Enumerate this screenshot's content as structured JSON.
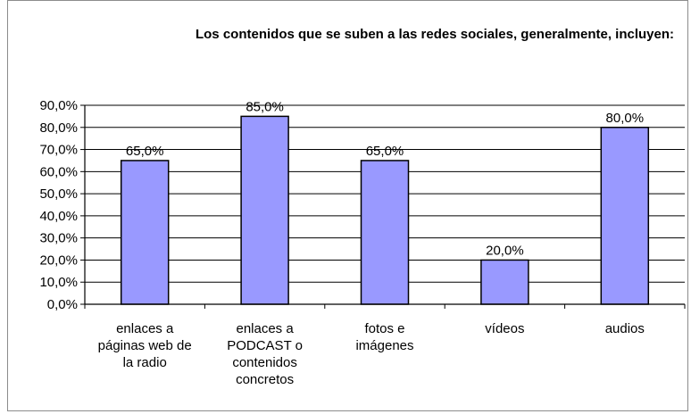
{
  "chart_data": {
    "type": "bar",
    "title": "Los contenidos que se suben a las redes sociales, generalmente, incluyen:",
    "categories": [
      [
        "enlaces a",
        "páginas web de",
        "la radio"
      ],
      [
        "enlaces a",
        "PODCAST o",
        "contenidos",
        "concretos"
      ],
      [
        "fotos e",
        "imágenes"
      ],
      [
        "vídeos"
      ],
      [
        "audios"
      ]
    ],
    "values": [
      65.0,
      85.0,
      65.0,
      20.0,
      80.0
    ],
    "value_labels": [
      "65,0%",
      "85,0%",
      "65,0%",
      "20,0%",
      "80,0%"
    ],
    "ylim": [
      0,
      90
    ],
    "yticks": [
      0,
      10,
      20,
      30,
      40,
      50,
      60,
      70,
      80,
      90
    ],
    "ytick_labels": [
      "0,0%",
      "10,0%",
      "20,0%",
      "30,0%",
      "40,0%",
      "50,0%",
      "60,0%",
      "70,0%",
      "80,0%",
      "90,0%"
    ],
    "grid": true,
    "bar_color": "#9999ff",
    "bar_edge_color": "#000000",
    "grid_color": "#000000"
  }
}
